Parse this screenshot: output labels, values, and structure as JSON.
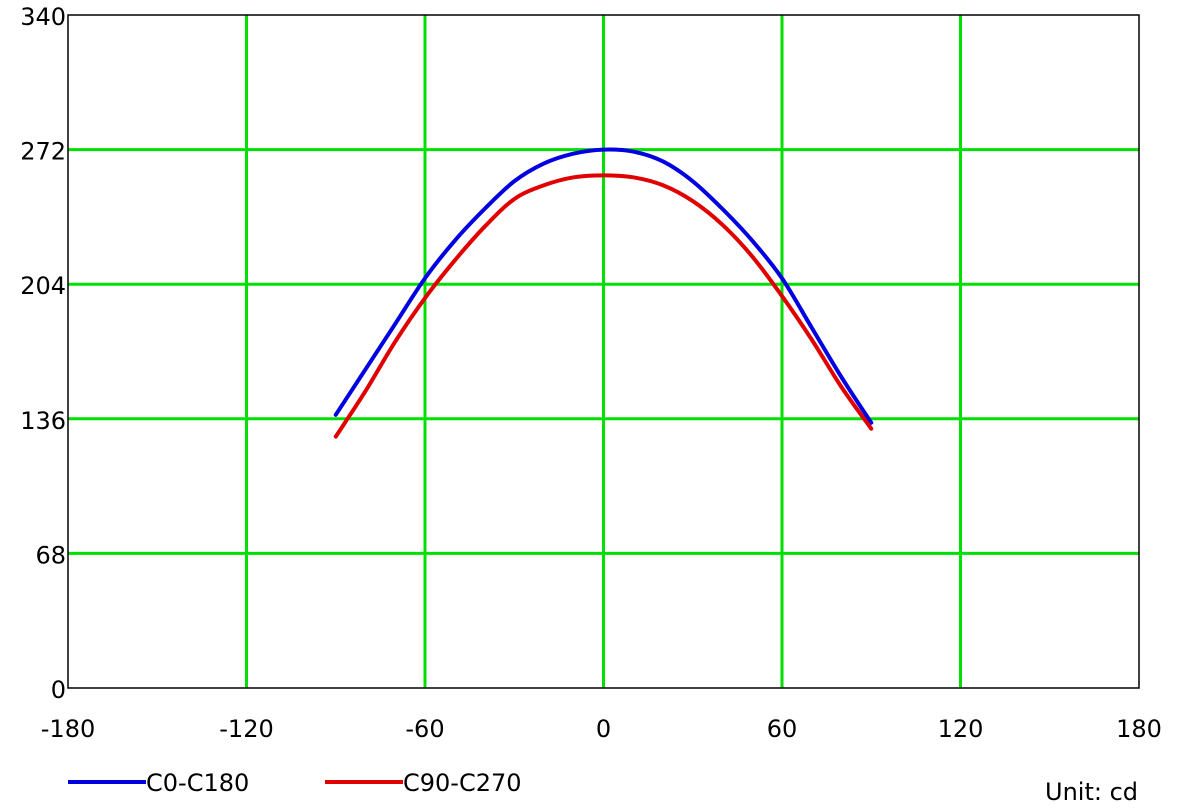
{
  "chart_data": {
    "type": "line",
    "xlim": [
      -180,
      180
    ],
    "ylim": [
      0,
      340
    ],
    "xticks": [
      -180,
      -120,
      -60,
      0,
      60,
      120,
      180
    ],
    "yticks": [
      0,
      68,
      136,
      204,
      272,
      340
    ],
    "grid": true,
    "grid_color": "#00e000",
    "legend_position": "bottom-left",
    "unit_label": "Unit: cd",
    "series": [
      {
        "name": "C0-C180",
        "color": "#0000e0",
        "x": [
          -90,
          -80,
          -70,
          -60,
          -50,
          -40,
          -30,
          -20,
          -10,
          0,
          10,
          20,
          30,
          40,
          50,
          60,
          70,
          80,
          90
        ],
        "y": [
          138,
          161,
          184,
          207,
          226,
          242,
          256,
          265,
          270,
          272,
          271,
          266,
          256,
          242,
          226,
          207,
          182,
          157,
          134
        ]
      },
      {
        "name": "C90-C270",
        "color": "#e00000",
        "x": [
          -90,
          -80,
          -70,
          -60,
          -50,
          -40,
          -30,
          -20,
          -10,
          0,
          10,
          20,
          30,
          40,
          50,
          60,
          70,
          80,
          90
        ],
        "y": [
          127,
          150,
          175,
          197,
          216,
          233,
          247,
          254,
          258,
          259,
          258,
          254,
          246,
          234,
          218,
          198,
          176,
          152,
          131
        ]
      }
    ]
  }
}
